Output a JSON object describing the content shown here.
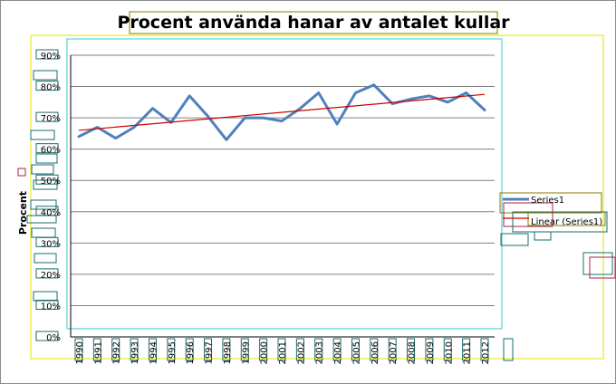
{
  "chart_data": {
    "type": "line",
    "title": "Procent använda hanar av antalet kullar",
    "ylabel": "Procent",
    "xlabel": "",
    "ylim": [
      0,
      90
    ],
    "yticks": [
      "0%",
      "10%",
      "20%",
      "30%",
      "40%",
      "50%",
      "60%",
      "70%",
      "80%",
      "90%"
    ],
    "categories": [
      "1990",
      "1991",
      "1992",
      "1993",
      "1994",
      "1995",
      "1996",
      "1997",
      "1998",
      "1999",
      "2000",
      "2001",
      "2002",
      "2003",
      "2004",
      "2005",
      "2006",
      "2007",
      "2008",
      "2009",
      "2010",
      "2011",
      "2012"
    ],
    "series": [
      {
        "name": "Series1",
        "values": [
          64,
          67,
          63.5,
          67,
          73,
          68.5,
          77,
          70.5,
          63,
          70,
          70,
          69,
          73,
          78,
          68,
          78,
          80.5,
          74.5,
          76,
          77,
          75,
          78,
          72.5
        ]
      }
    ],
    "trendline": {
      "name": "Linear (Series1)",
      "type": "linear",
      "start": 66,
      "end": 77.5
    },
    "grid": true,
    "legend_position": "right",
    "colors": {
      "series": "#4f81bd",
      "trend": "#cc0000",
      "grid": "#808080"
    }
  }
}
